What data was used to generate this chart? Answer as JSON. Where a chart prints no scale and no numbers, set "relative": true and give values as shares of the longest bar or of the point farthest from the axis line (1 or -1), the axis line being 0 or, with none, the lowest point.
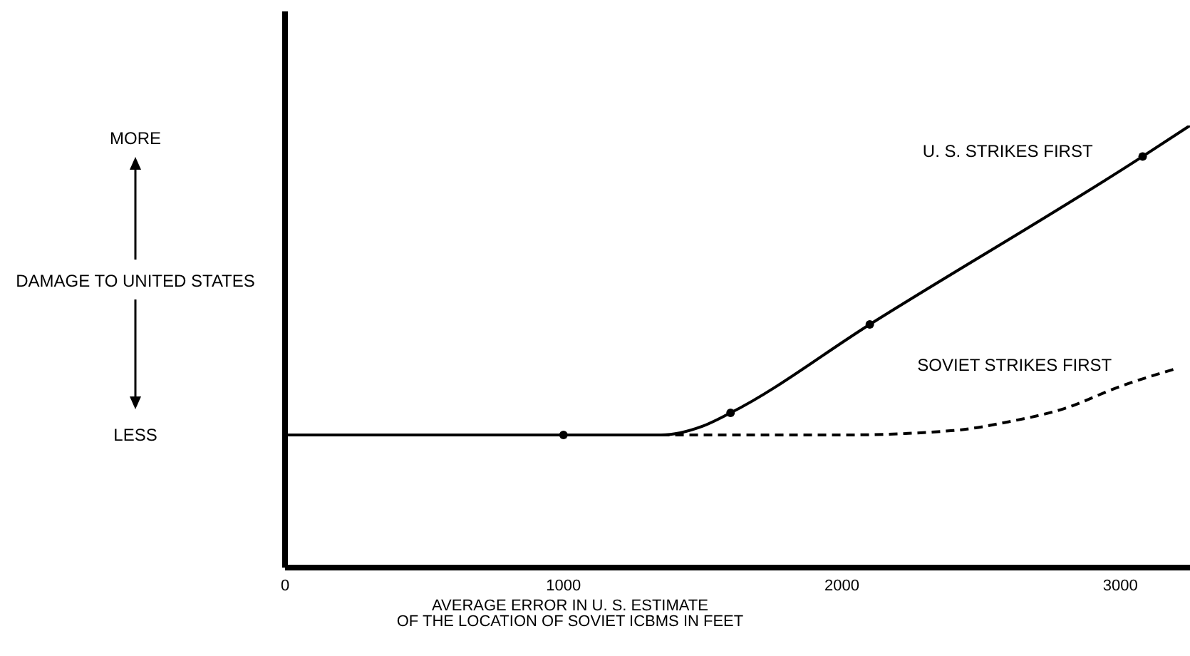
{
  "chart_data": {
    "type": "line",
    "relative": true,
    "xlabel": "AVERAGE ERROR IN U. S. ESTIMATE\nOF THE LOCATION OF SOVIET ICBMS IN FEET",
    "ylabel": "DAMAGE TO UNITED STATES",
    "annotations": [
      "MORE",
      "LESS"
    ],
    "xlim": [
      0,
      3250
    ],
    "xticks": [
      0,
      1000,
      2000,
      3000
    ],
    "series": [
      {
        "name": "U. S. STRIKES FIRST",
        "color": "#000000",
        "line_style": "solid",
        "marker": "none",
        "x": [
          0,
          1000,
          1350,
          1500,
          1600,
          2100,
          3080,
          3250
        ],
        "values": [
          0.3,
          0.3,
          0.3,
          0.32,
          0.35,
          0.55,
          0.93,
          1.0
        ]
      },
      {
        "name": "SOVIET STRIKES FIRST",
        "color": "#000000",
        "line_style": "dashed",
        "marker": "none",
        "x": [
          1350,
          2000,
          2400,
          2600,
          2800,
          3000,
          3200
        ],
        "values": [
          0.3,
          0.3,
          0.31,
          0.33,
          0.36,
          0.41,
          0.45
        ]
      },
      {
        "type": "scatter",
        "color": "#000000",
        "marker": "circle",
        "x": [
          1000,
          1600,
          2100,
          3080
        ],
        "values": [
          0.3,
          0.35,
          0.55,
          0.93
        ]
      }
    ]
  }
}
